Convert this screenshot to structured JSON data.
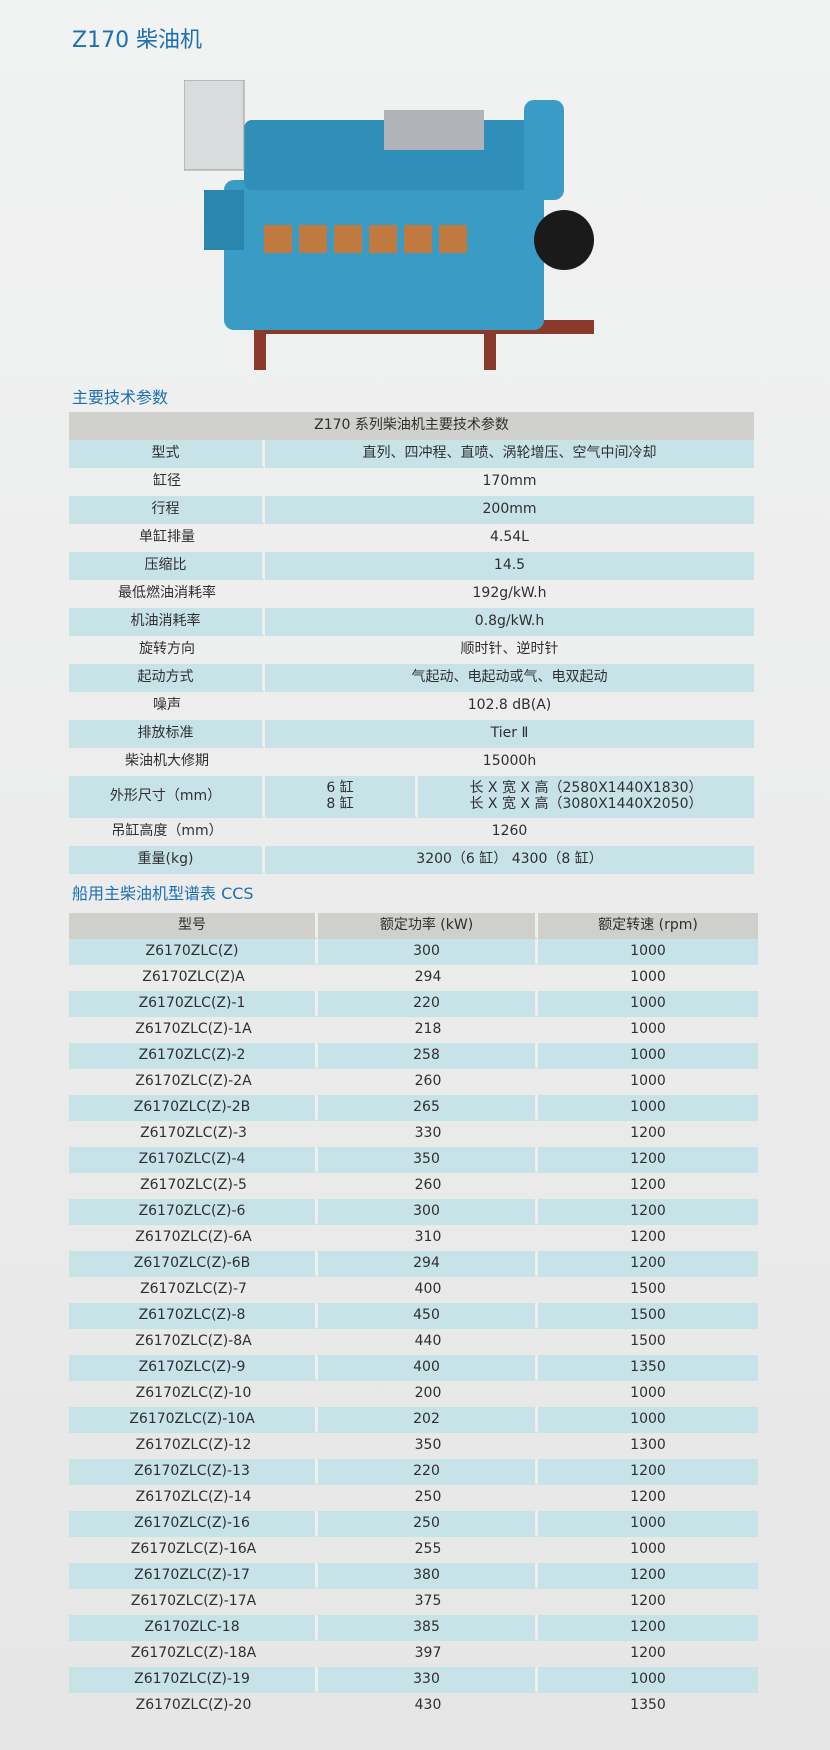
{
  "title": "Z170 柴油机",
  "section1": "主要技术参数",
  "spec_table": {
    "caption": "Z170 系列柴油机主要技术参数",
    "rows": [
      {
        "label": "型式",
        "value": "直列、四冲程、直喷、涡轮增压、空气中间冷却"
      },
      {
        "label": "缸径",
        "value": "170mm"
      },
      {
        "label": "行程",
        "value": "200mm"
      },
      {
        "label": "单缸排量",
        "value": "4.54L"
      },
      {
        "label": "压缩比",
        "value": "14.5"
      },
      {
        "label": "最低燃油消耗率",
        "value": "192g/kW.h"
      },
      {
        "label": "机油消耗率",
        "value": "0.8g/kW.h"
      },
      {
        "label": "旋转方向",
        "value": "顺时针、逆时针"
      },
      {
        "label": "起动方式",
        "value": "气起动、电起动或气、电双起动"
      },
      {
        "label": "噪声",
        "value": "102.8 dB(A)"
      },
      {
        "label": "排放标准",
        "value": "Tier Ⅱ"
      },
      {
        "label": "柴油机大修期",
        "value": "15000h"
      }
    ],
    "dimensions": {
      "label": "外形尺寸（mm）",
      "cyl6": "6 缸",
      "cyl8": "8 缸",
      "val6": "长 X 宽 X 高（2580X1440X1830）",
      "val8": "长 X 宽 X 高（3080X1440X2050）"
    },
    "lift": {
      "label": "吊缸高度（mm）",
      "value": "1260"
    },
    "weight": {
      "label": "重量(kg)",
      "value": "3200（6 缸） 4300（8 缸）"
    }
  },
  "section2": "船用主柴油机型谱表 CCS",
  "model_table": {
    "headers": [
      "型号",
      "额定功率 (kW)",
      "额定转速 (rpm)"
    ],
    "rows": [
      [
        "Z6170ZLC(Z)",
        "300",
        "1000"
      ],
      [
        "Z6170ZLC(Z)A",
        "294",
        "1000"
      ],
      [
        "Z6170ZLC(Z)-1",
        "220",
        "1000"
      ],
      [
        "Z6170ZLC(Z)-1A",
        "218",
        "1000"
      ],
      [
        "Z6170ZLC(Z)-2",
        "258",
        "1000"
      ],
      [
        "Z6170ZLC(Z)-2A",
        "260",
        "1000"
      ],
      [
        "Z6170ZLC(Z)-2B",
        "265",
        "1000"
      ],
      [
        "Z6170ZLC(Z)-3",
        "330",
        "1200"
      ],
      [
        "Z6170ZLC(Z)-4",
        "350",
        "1200"
      ],
      [
        "Z6170ZLC(Z)-5",
        "260",
        "1200"
      ],
      [
        "Z6170ZLC(Z)-6",
        "300",
        "1200"
      ],
      [
        "Z6170ZLC(Z)-6A",
        "310",
        "1200"
      ],
      [
        "Z6170ZLC(Z)-6B",
        "294",
        "1200"
      ],
      [
        "Z6170ZLC(Z)-7",
        "400",
        "1500"
      ],
      [
        "Z6170ZLC(Z)-8",
        "450",
        "1500"
      ],
      [
        "Z6170ZLC(Z)-8A",
        "440",
        "1500"
      ],
      [
        "Z6170ZLC(Z)-9",
        "400",
        "1350"
      ],
      [
        "Z6170ZLC(Z)-10",
        "200",
        "1000"
      ],
      [
        "Z6170ZLC(Z)-10A",
        "202",
        "1000"
      ],
      [
        "Z6170ZLC(Z)-12",
        "350",
        "1300"
      ],
      [
        "Z6170ZLC(Z)-13",
        "220",
        "1200"
      ],
      [
        "Z6170ZLC(Z)-14",
        "250",
        "1200"
      ],
      [
        "Z6170ZLC(Z)-16",
        "250",
        "1000"
      ],
      [
        "Z6170ZLC(Z)-16A",
        "255",
        "1000"
      ],
      [
        "Z6170ZLC(Z)-17",
        "380",
        "1200"
      ],
      [
        "Z6170ZLC(Z)-17A",
        "375",
        "1200"
      ],
      [
        "Z6170ZLC-18",
        "385",
        "1200"
      ],
      [
        "Z6170ZLC(Z)-18A",
        "397",
        "1200"
      ],
      [
        "Z6170ZLC(Z)-19",
        "330",
        "1000"
      ],
      [
        "Z6170ZLC(Z)-20",
        "430",
        "1350"
      ]
    ]
  },
  "colors": {
    "accent": "#1d6fb3",
    "row_blue": "#c8e3e8",
    "header_gray": "#d0d0cc",
    "engine_blue": "#3a9cc4"
  }
}
